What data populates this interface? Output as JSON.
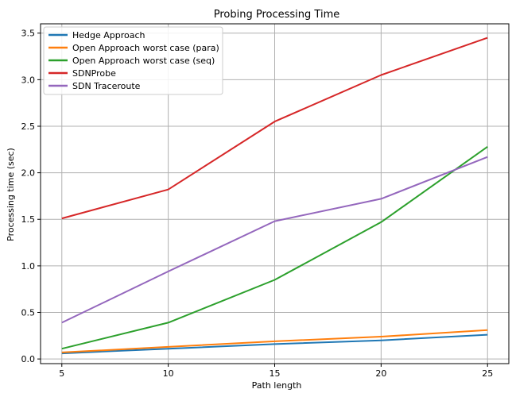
{
  "chart_data": {
    "type": "line",
    "title": "Probing Processing Time",
    "xlabel": "Path length",
    "ylabel": "Processing time (sec)",
    "x": [
      5,
      10,
      15,
      20,
      25
    ],
    "xlim": [
      4,
      26
    ],
    "ylim": [
      -0.05,
      3.6
    ],
    "xticks": [
      5,
      10,
      15,
      20,
      25
    ],
    "yticks": [
      0.0,
      0.5,
      1.0,
      1.5,
      2.0,
      2.5,
      3.0,
      3.5
    ],
    "ytick_labels": [
      "0.0",
      "0.5",
      "1.0",
      "1.5",
      "2.0",
      "2.5",
      "3.0",
      "3.5"
    ],
    "grid": true,
    "legend_position": "top-left",
    "series": [
      {
        "name": "Hedge Approach",
        "color": "#1f77b4",
        "values": [
          0.06,
          0.11,
          0.16,
          0.2,
          0.26
        ]
      },
      {
        "name": "Open Approach worst case (para)",
        "color": "#ff7f0e",
        "values": [
          0.07,
          0.13,
          0.19,
          0.24,
          0.31
        ]
      },
      {
        "name": "Open Approach worst case (seq)",
        "color": "#2ca02c",
        "values": [
          0.11,
          0.39,
          0.85,
          1.47,
          2.28
        ]
      },
      {
        "name": "SDNProbe",
        "color": "#d62728",
        "values": [
          1.51,
          1.82,
          2.55,
          3.05,
          3.45
        ]
      },
      {
        "name": "SDN Traceroute",
        "color": "#9467bd",
        "values": [
          0.39,
          0.94,
          1.48,
          1.72,
          2.17
        ]
      }
    ]
  }
}
